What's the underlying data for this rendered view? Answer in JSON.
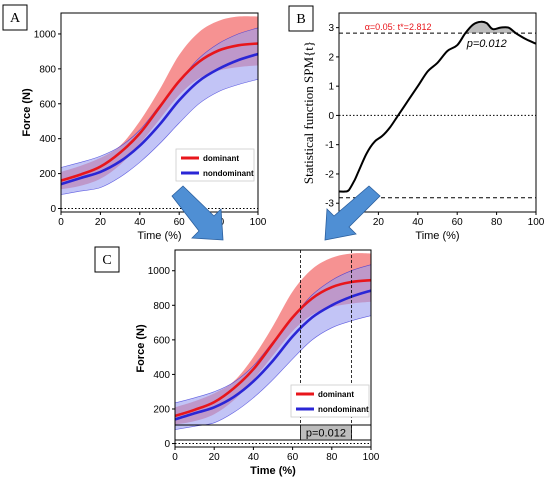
{
  "panels": {
    "a_letter": "A",
    "b_letter": "B",
    "c_letter": "C"
  },
  "colors": {
    "dominant": "#e8161b",
    "dominant_band": "#f47f7f",
    "nondominant": "#2a26d6",
    "nondominant_band": "#9a9cf0",
    "overlap_band": "#b08fd0",
    "spm": "#000000",
    "threshold_text": "#e8161b",
    "arrow": "#4f8fd4",
    "supra": "#bcbcbc"
  },
  "chart_data": [
    {
      "id": "A",
      "type": "line",
      "xlabel": "Time (%)",
      "ylabel": "Force (N)",
      "xlim": [
        0,
        100
      ],
      "ylim": [
        -20,
        1120
      ],
      "xticks": [
        "0",
        "20",
        "40",
        "60",
        "80",
        "100"
      ],
      "yticks": [
        "0",
        "200",
        "400",
        "600",
        "800",
        "1000"
      ],
      "x": [
        0,
        10,
        20,
        30,
        40,
        50,
        60,
        70,
        80,
        90,
        100
      ],
      "series": [
        {
          "name": "dominant",
          "values": [
            160,
            195,
            240,
            320,
            430,
            580,
            730,
            840,
            905,
            935,
            945
          ],
          "band_lower": [
            110,
            130,
            170,
            250,
            370,
            510,
            650,
            745,
            790,
            810,
            820
          ],
          "band_upper": [
            210,
            245,
            290,
            360,
            500,
            680,
            880,
            1010,
            1075,
            1100,
            1100
          ]
        },
        {
          "name": "nondominant",
          "values": [
            140,
            175,
            210,
            270,
            360,
            480,
            620,
            730,
            800,
            850,
            885
          ],
          "band_lower": [
            80,
            100,
            120,
            180,
            265,
            370,
            490,
            600,
            670,
            710,
            740
          ],
          "band_upper": [
            235,
            265,
            300,
            355,
            450,
            590,
            730,
            860,
            945,
            1000,
            1035
          ]
        }
      ],
      "zero_line": "dotted",
      "legend": "center-right"
    },
    {
      "id": "B",
      "type": "line",
      "xlabel": "Time (%)",
      "ylabel": "Statistical function SPM{t}",
      "xlim": [
        0,
        100
      ],
      "ylim": [
        -3.3,
        3.5
      ],
      "xticks": [
        "0",
        "20",
        "40",
        "60",
        "80",
        "100"
      ],
      "yticks": [
        "-3",
        "-2",
        "-1",
        "0",
        "1",
        "2",
        "3"
      ],
      "threshold": 2.812,
      "threshold_label": "α=0.05:  t*=2.812",
      "p_label": "p=0.012",
      "x": [
        0,
        3,
        5,
        8,
        10,
        14,
        18,
        22,
        26,
        30,
        35,
        40,
        45,
        50,
        55,
        60,
        64,
        68,
        72,
        75,
        78,
        82,
        86,
        90,
        95,
        100
      ],
      "series": [
        {
          "name": "SPM{t}",
          "values": [
            -2.6,
            -2.6,
            -2.55,
            -2.2,
            -1.9,
            -1.3,
            -0.9,
            -0.7,
            -0.4,
            0.0,
            0.5,
            1.0,
            1.5,
            1.8,
            2.2,
            2.4,
            2.8,
            3.1,
            3.2,
            3.15,
            2.95,
            3.0,
            3.0,
            2.8,
            2.6,
            2.45
          ]
        }
      ],
      "zero_line": "dotted",
      "crit_lines": [
        2.812,
        -2.812
      ]
    },
    {
      "id": "C",
      "type": "line",
      "xlabel": "Time (%)",
      "ylabel": "Force (N)",
      "xlim": [
        0,
        100
      ],
      "ylim": [
        -20,
        1120
      ],
      "xticks": [
        "0",
        "20",
        "40",
        "60",
        "80",
        "100"
      ],
      "yticks": [
        "0",
        "200",
        "400",
        "600",
        "800",
        "1000"
      ],
      "x": [
        0,
        10,
        20,
        30,
        40,
        50,
        60,
        70,
        80,
        90,
        100
      ],
      "series": [
        {
          "name": "dominant",
          "values": [
            160,
            195,
            240,
            320,
            430,
            580,
            730,
            840,
            905,
            935,
            945
          ],
          "band_lower": [
            110,
            130,
            170,
            250,
            370,
            510,
            650,
            745,
            790,
            810,
            820
          ],
          "band_upper": [
            210,
            245,
            290,
            360,
            500,
            680,
            880,
            1010,
            1075,
            1100,
            1100
          ]
        },
        {
          "name": "nondominant",
          "values": [
            140,
            175,
            210,
            270,
            360,
            480,
            620,
            730,
            800,
            850,
            885
          ],
          "band_lower": [
            80,
            100,
            120,
            180,
            265,
            370,
            490,
            600,
            670,
            710,
            740
          ],
          "band_upper": [
            235,
            265,
            300,
            355,
            450,
            590,
            730,
            860,
            945,
            1000,
            1035
          ]
        }
      ],
      "cluster": [
        64,
        90
      ],
      "p_label": "p=0.012",
      "zero_line": "dotted",
      "legend": "center-right"
    }
  ]
}
